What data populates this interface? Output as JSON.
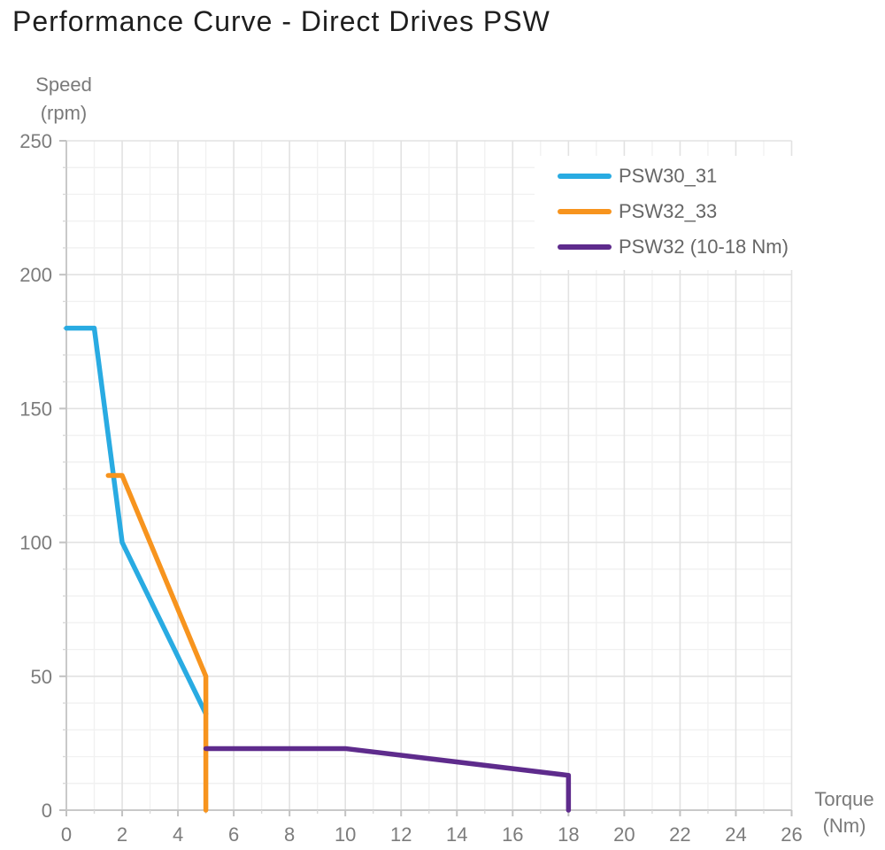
{
  "page_title": "Performance Curve - Direct Drives PSW",
  "axis_titles": {
    "y_line1": "Speed",
    "y_line2": "(rpm)",
    "x_line1": "Torque",
    "x_line2": "(Nm)"
  },
  "colors": {
    "title_text": "#1E1E1E",
    "axis_title_text": "#7A7A7A",
    "tick_label_text": "#7C7C7C",
    "legend_text": "#666666",
    "axis_line": "#C9C9C9",
    "grid_major": "#E2E2E2",
    "grid_minor": "#F1F1F1",
    "tick_major": "#C2C2C2",
    "tick_minor": "#D8D8D8",
    "background": "#FFFFFF"
  },
  "chart_data": {
    "type": "line",
    "title": "Performance Curve - Direct Drives PSW",
    "xlabel": "Torque (Nm)",
    "ylabel": "Speed (rpm)",
    "xlim": [
      0,
      26
    ],
    "ylim": [
      0,
      250
    ],
    "x_major_step": 2,
    "x_minor_step": 1,
    "y_major_step": 50,
    "y_minor_step": 10,
    "x_tick_labels": [
      0,
      2,
      4,
      6,
      8,
      10,
      12,
      14,
      16,
      18,
      20,
      22,
      24,
      26
    ],
    "y_tick_labels": [
      0,
      50,
      100,
      150,
      200,
      250
    ],
    "grid": true,
    "legend_position": "upper right",
    "series": [
      {
        "name": "PSW30_31",
        "color": "#29ABE2",
        "points": [
          [
            0,
            180
          ],
          [
            1,
            180
          ],
          [
            2,
            100
          ],
          [
            5,
            36
          ]
        ]
      },
      {
        "name": "PSW32_33",
        "color": "#F7941E",
        "points": [
          [
            1.5,
            125
          ],
          [
            2,
            125
          ],
          [
            5,
            50
          ],
          [
            5,
            0
          ]
        ]
      },
      {
        "name": "PSW32 (10-18 Nm)",
        "color": "#5E2B8C",
        "points": [
          [
            5,
            23
          ],
          [
            10,
            23
          ],
          [
            18,
            13
          ],
          [
            18,
            0
          ]
        ]
      }
    ]
  }
}
